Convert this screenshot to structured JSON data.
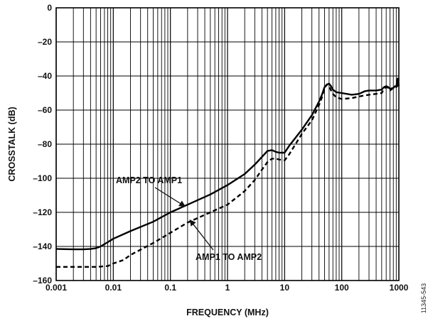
{
  "chart_data": {
    "type": "line",
    "title": "",
    "xlabel": "FREQUENCY (MHz)",
    "ylabel": "CROSSTALK (dB)",
    "xscale": "log",
    "xlim": [
      0.001,
      1000
    ],
    "ylim": [
      -160,
      0
    ],
    "xticks": [
      "0.001",
      "0.01",
      "0.1",
      "1",
      "10",
      "100",
      "1000"
    ],
    "yticks": [
      "0",
      "–20",
      "–40",
      "–60",
      "–80",
      "–100",
      "–120",
      "–140",
      "–160"
    ],
    "grid": true,
    "legend": "none",
    "series": [
      {
        "name": "AMP2 TO AMP1",
        "style": "solid",
        "color": "#000000",
        "x": [
          0.001,
          0.002,
          0.003,
          0.004,
          0.005,
          0.006,
          0.008,
          0.01,
          0.02,
          0.05,
          0.1,
          0.2,
          0.5,
          1,
          2,
          3,
          4,
          5,
          6,
          7,
          8,
          10,
          12,
          20,
          30,
          40,
          45,
          50,
          55,
          60,
          65,
          70,
          80,
          100,
          150,
          200,
          250,
          300,
          400,
          500,
          550,
          600,
          650,
          700,
          800,
          850,
          900,
          950,
          1000
        ],
        "y": [
          -141.5,
          -141.7,
          -141.7,
          -141.5,
          -141.0,
          -140.0,
          -137.5,
          -135.5,
          -131.0,
          -125.5,
          -120.0,
          -115.5,
          -109.5,
          -104.0,
          -97.5,
          -92.0,
          -87.5,
          -84.0,
          -83.5,
          -84.5,
          -85.0,
          -85.0,
          -81.0,
          -71.5,
          -63.0,
          -55.0,
          -51.0,
          -46.5,
          -45.0,
          -44.5,
          -46.0,
          -48.0,
          -49.5,
          -50.0,
          -51.0,
          -50.5,
          -49.0,
          -48.5,
          -48.5,
          -48.0,
          -46.5,
          -46.0,
          -46.5,
          -47.5,
          -47.0,
          -46.0,
          -46.5,
          -41.5,
          -46.0
        ]
      },
      {
        "name": "AMP1 TO AMP2",
        "style": "dashed",
        "color": "#000000",
        "x": [
          0.001,
          0.002,
          0.005,
          0.008,
          0.01,
          0.015,
          0.02,
          0.05,
          0.1,
          0.2,
          0.5,
          1,
          2,
          3,
          4,
          5,
          6,
          7,
          8,
          10,
          12,
          20,
          30,
          40,
          45,
          50,
          55,
          60,
          65,
          70,
          80,
          100,
          150,
          200,
          300,
          400,
          500,
          550,
          600,
          650,
          700,
          800,
          900,
          1000
        ],
        "y": [
          -152.0,
          -152.0,
          -152.0,
          -151.5,
          -150.0,
          -148.0,
          -145.0,
          -138.0,
          -132.0,
          -126.0,
          -120.0,
          -115.5,
          -107.5,
          -101.0,
          -95.0,
          -90.5,
          -88.5,
          -88.5,
          -89.0,
          -89.5,
          -86.0,
          -74.0,
          -66.0,
          -57.0,
          -52.5,
          -47.0,
          -45.0,
          -46.0,
          -48.5,
          -50.5,
          -52.5,
          -53.5,
          -53.0,
          -52.0,
          -51.0,
          -50.5,
          -50.0,
          -47.5,
          -46.5,
          -47.0,
          -48.5,
          -47.0,
          -46.5,
          -45.0
        ]
      }
    ],
    "annotations": [
      {
        "text": "AMP2 TO AMP1",
        "target_x": 0.18,
        "target_y": -116.5,
        "target_series": "AMP2 TO AMP1"
      },
      {
        "text": "AMP1 TO AMP2",
        "target_x": 0.22,
        "target_y": -124.5,
        "target_series": "AMP1 TO AMP2"
      }
    ],
    "figure_id": "11345-543"
  }
}
